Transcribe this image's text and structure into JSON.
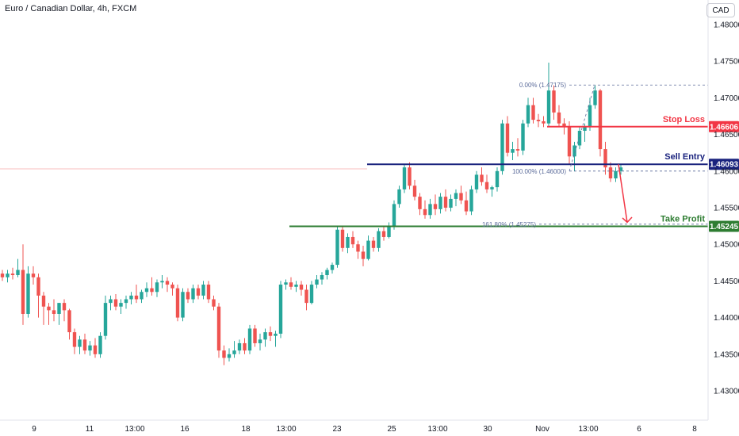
{
  "header": {
    "title": "Euro / Canadian Dollar, 4h, FXCM",
    "currency_button": "CAD"
  },
  "colors": {
    "up": "#26a69a",
    "down": "#ef5350",
    "stop": "#f23645",
    "entry": "#1a237e",
    "take_profit": "#2e7d32",
    "fib": "#5b6b9a",
    "axis_text": "#131722"
  },
  "chart_data": {
    "type": "candlestick",
    "title": "Euro / Canadian Dollar, 4h, FXCM",
    "ylim": [
      1.4255,
      1.4835
    ],
    "y_ticks": [
      "1.48000",
      "1.47500",
      "1.47000",
      "1.46500",
      "1.46000",
      "1.45500",
      "1.45000",
      "1.44500",
      "1.44000",
      "1.43500",
      "1.43000"
    ],
    "x_ticks": [
      "9",
      "11",
      "13:00",
      "16",
      "18",
      "13:00",
      "23",
      "25",
      "13:00",
      "30",
      "Nov",
      "13:00",
      "6",
      "8"
    ],
    "grid": false,
    "candles": [
      [
        1.446,
        1.4465,
        1.445,
        1.4455
      ],
      [
        1.4455,
        1.4465,
        1.4448,
        1.446
      ],
      [
        1.446,
        1.4468,
        1.4452,
        1.4458
      ],
      [
        1.4458,
        1.448,
        1.4455,
        1.4465
      ],
      [
        1.4465,
        1.45,
        1.439,
        1.4405
      ],
      [
        1.4405,
        1.447,
        1.44,
        1.446
      ],
      [
        1.446,
        1.447,
        1.4445,
        1.4455
      ],
      [
        1.4455,
        1.446,
        1.44,
        1.443
      ],
      [
        1.443,
        1.4435,
        1.439,
        1.4415
      ],
      [
        1.4415,
        1.442,
        1.439,
        1.441
      ],
      [
        1.441,
        1.4425,
        1.4395,
        1.4405
      ],
      [
        1.4405,
        1.442,
        1.439,
        1.442
      ],
      [
        1.442,
        1.4425,
        1.4395,
        1.441
      ],
      [
        1.441,
        1.4412,
        1.437,
        1.438
      ],
      [
        1.438,
        1.4385,
        1.435,
        1.436
      ],
      [
        1.436,
        1.4375,
        1.435,
        1.437
      ],
      [
        1.437,
        1.4378,
        1.435,
        1.4355
      ],
      [
        1.4355,
        1.4368,
        1.4348,
        1.4362
      ],
      [
        1.4362,
        1.4372,
        1.4345,
        1.435
      ],
      [
        1.435,
        1.438,
        1.4345,
        1.4375
      ],
      [
        1.4375,
        1.443,
        1.437,
        1.442
      ],
      [
        1.442,
        1.443,
        1.441,
        1.4425
      ],
      [
        1.4425,
        1.4432,
        1.441,
        1.4415
      ],
      [
        1.4415,
        1.4425,
        1.4405,
        1.442
      ],
      [
        1.442,
        1.443,
        1.4412,
        1.4425
      ],
      [
        1.4425,
        1.4435,
        1.4418,
        1.443
      ],
      [
        1.443,
        1.4445,
        1.442,
        1.4425
      ],
      [
        1.4425,
        1.4438,
        1.442,
        1.4435
      ],
      [
        1.4435,
        1.4448,
        1.4428,
        1.444
      ],
      [
        1.444,
        1.4455,
        1.443,
        1.4435
      ],
      [
        1.4435,
        1.4452,
        1.4428,
        1.4448
      ],
      [
        1.4448,
        1.4458,
        1.444,
        1.445
      ],
      [
        1.445,
        1.4455,
        1.4435,
        1.4445
      ],
      [
        1.4445,
        1.4448,
        1.443,
        1.444
      ],
      [
        1.444,
        1.4445,
        1.4395,
        1.44
      ],
      [
        1.44,
        1.444,
        1.4395,
        1.4435
      ],
      [
        1.4435,
        1.444,
        1.442,
        1.4425
      ],
      [
        1.4425,
        1.4445,
        1.442,
        1.444
      ],
      [
        1.444,
        1.4445,
        1.4425,
        1.443
      ],
      [
        1.443,
        1.445,
        1.4425,
        1.4445
      ],
      [
        1.4445,
        1.445,
        1.442,
        1.4425
      ],
      [
        1.4425,
        1.443,
        1.441,
        1.4415
      ],
      [
        1.4415,
        1.442,
        1.4345,
        1.4355
      ],
      [
        1.4355,
        1.4362,
        1.4335,
        1.4345
      ],
      [
        1.4345,
        1.4358,
        1.434,
        1.435
      ],
      [
        1.435,
        1.4368,
        1.4345,
        1.4355
      ],
      [
        1.4355,
        1.437,
        1.435,
        1.4365
      ],
      [
        1.4365,
        1.4372,
        1.435,
        1.4355
      ],
      [
        1.4355,
        1.439,
        1.435,
        1.4385
      ],
      [
        1.4385,
        1.439,
        1.436,
        1.4365
      ],
      [
        1.4365,
        1.4378,
        1.4355,
        1.437
      ],
      [
        1.437,
        1.4385,
        1.436,
        1.438
      ],
      [
        1.438,
        1.4388,
        1.4368,
        1.4375
      ],
      [
        1.4375,
        1.4382,
        1.436,
        1.4378
      ],
      [
        1.4378,
        1.445,
        1.4372,
        1.4445
      ],
      [
        1.4445,
        1.4452,
        1.4438,
        1.4448
      ],
      [
        1.4448,
        1.4455,
        1.4438,
        1.4442
      ],
      [
        1.4442,
        1.445,
        1.4435,
        1.4445
      ],
      [
        1.4445,
        1.445,
        1.443,
        1.4438
      ],
      [
        1.4438,
        1.4445,
        1.441,
        1.442
      ],
      [
        1.442,
        1.445,
        1.4418,
        1.4445
      ],
      [
        1.4445,
        1.4458,
        1.444,
        1.4452
      ],
      [
        1.4452,
        1.4462,
        1.4445,
        1.4458
      ],
      [
        1.4458,
        1.4468,
        1.4452,
        1.4465
      ],
      [
        1.4465,
        1.4475,
        1.446,
        1.4472
      ],
      [
        1.4472,
        1.4525,
        1.4468,
        1.452
      ],
      [
        1.452,
        1.4525,
        1.449,
        1.4495
      ],
      [
        1.4495,
        1.4515,
        1.4488,
        1.451
      ],
      [
        1.451,
        1.4518,
        1.4495,
        1.45
      ],
      [
        1.45,
        1.4505,
        1.448,
        1.449
      ],
      [
        1.449,
        1.4498,
        1.447,
        1.448
      ],
      [
        1.448,
        1.4512,
        1.4478,
        1.4505
      ],
      [
        1.4505,
        1.451,
        1.449,
        1.4495
      ],
      [
        1.4495,
        1.4522,
        1.449,
        1.4518
      ],
      [
        1.4518,
        1.4525,
        1.4505,
        1.451
      ],
      [
        1.451,
        1.453,
        1.4508,
        1.4525
      ],
      [
        1.4525,
        1.456,
        1.452,
        1.4555
      ],
      [
        1.4555,
        1.458,
        1.455,
        1.4575
      ],
      [
        1.4575,
        1.461,
        1.457,
        1.4605
      ],
      [
        1.4605,
        1.4612,
        1.4575,
        1.458
      ],
      [
        1.458,
        1.4588,
        1.456,
        1.4565
      ],
      [
        1.4565,
        1.457,
        1.454,
        1.4548
      ],
      [
        1.4548,
        1.456,
        1.4535,
        1.454
      ],
      [
        1.454,
        1.4562,
        1.4535,
        1.4555
      ],
      [
        1.4555,
        1.4568,
        1.454,
        1.4548
      ],
      [
        1.4548,
        1.457,
        1.4542,
        1.4565
      ],
      [
        1.4565,
        1.4575,
        1.4545,
        1.455
      ],
      [
        1.455,
        1.4568,
        1.4545,
        1.4562
      ],
      [
        1.4562,
        1.4575,
        1.4552,
        1.457
      ],
      [
        1.457,
        1.458,
        1.4555,
        1.456
      ],
      [
        1.456,
        1.4572,
        1.454,
        1.4545
      ],
      [
        1.4545,
        1.458,
        1.454,
        1.4575
      ],
      [
        1.4575,
        1.46,
        1.457,
        1.4595
      ],
      [
        1.4595,
        1.4605,
        1.458,
        1.4585
      ],
      [
        1.4585,
        1.4595,
        1.457,
        1.4575
      ],
      [
        1.4575,
        1.458,
        1.4565,
        1.4578
      ],
      [
        1.4578,
        1.4605,
        1.4572,
        1.46
      ],
      [
        1.46,
        1.467,
        1.4595,
        1.4665
      ],
      [
        1.4665,
        1.4675,
        1.462,
        1.4625
      ],
      [
        1.4625,
        1.464,
        1.4615,
        1.463
      ],
      [
        1.463,
        1.4645,
        1.462,
        1.4628
      ],
      [
        1.4628,
        1.467,
        1.4622,
        1.4665
      ],
      [
        1.4665,
        1.47,
        1.466,
        1.469
      ],
      [
        1.469,
        1.47,
        1.4665,
        1.467
      ],
      [
        1.467,
        1.4678,
        1.466,
        1.4668
      ],
      [
        1.4668,
        1.4675,
        1.466,
        1.4665
      ],
      [
        1.4665,
        1.4748,
        1.466,
        1.471
      ],
      [
        1.471,
        1.4717,
        1.467,
        1.468
      ],
      [
        1.468,
        1.469,
        1.466,
        1.4665
      ],
      [
        1.4665,
        1.4672,
        1.465,
        1.466
      ],
      [
        1.466,
        1.4668,
        1.461,
        1.462
      ],
      [
        1.462,
        1.464,
        1.46,
        1.4635
      ],
      [
        1.4635,
        1.466,
        1.463,
        1.4655
      ],
      [
        1.4655,
        1.4665,
        1.464,
        1.466
      ],
      [
        1.466,
        1.47,
        1.4655,
        1.469
      ],
      [
        1.469,
        1.4717,
        1.4685,
        1.471
      ],
      [
        1.471,
        1.4712,
        1.462,
        1.463
      ],
      [
        1.463,
        1.464,
        1.4595,
        1.4605
      ],
      [
        1.4605,
        1.4612,
        1.4585,
        1.459
      ],
      [
        1.459,
        1.4605,
        1.4585,
        1.46
      ],
      [
        1.46,
        1.461,
        1.4595,
        1.4605
      ]
    ],
    "levels": [
      {
        "name": "Stop Loss",
        "value": "1.46606"
      },
      {
        "name": "Sell Entry",
        "value": "1.46093"
      },
      {
        "name": "Take Profit",
        "value": "1.45245"
      }
    ],
    "fibonacci": [
      {
        "label": "0.00% (1.47175)",
        "value": 1.47175
      },
      {
        "label": "100.00% (1.46000)",
        "value": 1.46
      },
      {
        "label": "161.80% (1.45275)",
        "value": 1.45275
      }
    ]
  }
}
